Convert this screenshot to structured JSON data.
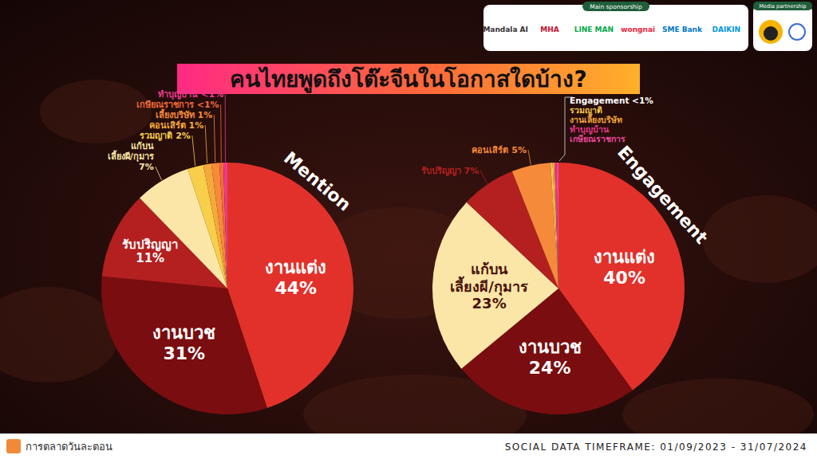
{
  "page": {
    "title": "คนไทยพูดถึงโต๊ะจีนในโอกาสใดบ้าง?",
    "sponsor_heading": "Main sponsorship",
    "sponsors": [
      "Mandala AI",
      "MHA",
      "LINE MAN",
      "wongnai",
      "SME Bank",
      "DAIKIN"
    ],
    "media_heading": "Media partnership",
    "brand": "การตลาดวันละตอน",
    "timeframe": "SOCIAL DATA TIMEFRAME: 01/09/2023 - 31/07/2024"
  },
  "chart_data": [
    {
      "type": "pie",
      "title": "Mention",
      "categories": [
        "งานแต่ง",
        "งานบวช",
        "รับปริญญา",
        "แก้บน เลี้ยงผี/กุมาร",
        "รวมญาติ",
        "คอนเสิร์ต",
        "เลี้ยงบริษัท",
        "เกษียณราชการ",
        "ทำบุญบ้าน"
      ],
      "values": [
        44,
        31,
        11,
        7,
        2,
        1,
        1,
        0.5,
        0.5
      ],
      "value_labels": [
        "44%",
        "31%",
        "11%",
        "7%",
        "2%",
        "1%",
        "1%",
        "<1%",
        "<1%"
      ],
      "colors": [
        "#e2312b",
        "#7a0d0f",
        "#b3201f",
        "#fbe6a8",
        "#f7cf4a",
        "#f4a93c",
        "#f58a3a",
        "#ef6a3a",
        "#e83a8c"
      ],
      "data_labels": true
    },
    {
      "type": "pie",
      "title": "Engagement",
      "categories": [
        "งานแต่ง",
        "งานบวช",
        "แก้บน เลี้ยงผี/กุมาร",
        "รับปริญญา",
        "คอนเสิร์ต",
        "รวมญาติ",
        "งานเลี้ยงบริษัท",
        "ทำบุญบ้าน",
        "เกษียณราชการ"
      ],
      "values": [
        40,
        24,
        23,
        7,
        5,
        0.25,
        0.25,
        0.25,
        0.25
      ],
      "value_labels": [
        "40%",
        "24%",
        "23%",
        "7%",
        "5%",
        null,
        null,
        null,
        null
      ],
      "colors": [
        "#e2312b",
        "#7a0d0f",
        "#fbe6a8",
        "#b3201f",
        "#f58a3a",
        "#f7cf4a",
        "#f4a93c",
        "#e83a8c",
        "#ef4aa0"
      ],
      "annotations": [
        "Engagement <1%"
      ],
      "data_labels": true
    }
  ]
}
